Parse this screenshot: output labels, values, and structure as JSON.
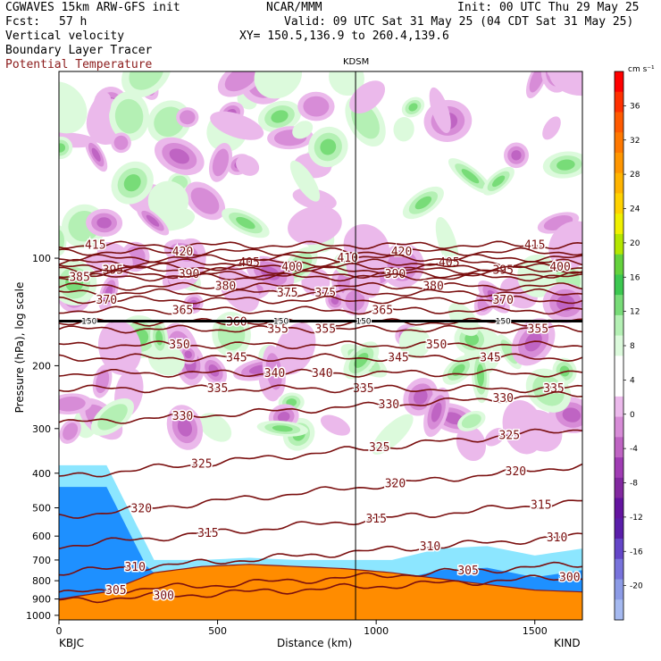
{
  "header": {
    "model_line": "CGWAVES 15km ARW-GFS init",
    "fcst_label": "Fcst:",
    "fcst_value": "57 h",
    "field1": "Vertical velocity",
    "field2": "Boundary Layer Tracer",
    "field3": "Potential Temperature",
    "org": "NCAR/MMM",
    "init": "Init: 00 UTC Thu 29 May 25",
    "valid": "Valid: 09 UTC Sat 31 May 25 (04 CDT Sat 31 May 25)",
    "xy": "XY= 150.5,136.9 to 260.4,139.6"
  },
  "colors": {
    "theta": "#7a0f0f",
    "ground": "#ff8c00",
    "terrain_line": "#8b1a1a",
    "field3_text": "#8b1a1a"
  },
  "chart_data": {
    "type": "heatmap",
    "xlabel": "Distance (km)",
    "ylabel": "Pressure (hPa), log scale",
    "xlim": [
      0,
      1650
    ],
    "ylim": [
      1000,
      30
    ],
    "x_ticks": [
      0,
      500,
      1000,
      1500
    ],
    "y_ticks": [
      100,
      200,
      300,
      400,
      500,
      600,
      700,
      800,
      900,
      1000
    ],
    "y_scale": "log",
    "start_label": "KBJC",
    "end_label": "KIND",
    "station_marker": {
      "label": "KDSM",
      "x": 935
    },
    "colorbar": {
      "units": "cm s⁻¹",
      "tick_labels": [
        36,
        32,
        28,
        24,
        20,
        16,
        12,
        8,
        4,
        0,
        -4,
        -8,
        -12,
        -16,
        -20
      ],
      "colors": [
        "#ff0000",
        "#ff3000",
        "#ff5a00",
        "#ff7800",
        "#ff9600",
        "#ffb400",
        "#ffd200",
        "#f0f000",
        "#b4e600",
        "#64d23c",
        "#3cc850",
        "#78dc78",
        "#b4f0b4",
        "#dcfadc",
        "#ffffff",
        "#ffffff",
        "#ebb9eb",
        "#d78cd7",
        "#bf64c3",
        "#a03cb4",
        "#8228a0",
        "#6414a0",
        "#5a1eaa",
        "#6446c8",
        "#7873dc",
        "#8c9be6",
        "#a5b9f0"
      ]
    },
    "theta_contours": [
      {
        "theta": 415,
        "x": [
          0,
          1650
        ],
        "p": [
          92,
          92
        ],
        "label_x": [
          115,
          1500
        ]
      },
      {
        "theta": 420,
        "x": [
          0,
          1650
        ],
        "p": [
          96,
          96
        ],
        "label_x": [
          390,
          1080
        ]
      },
      {
        "theta": 405,
        "x": [
          0,
          1650
        ],
        "p": [
          103,
          103
        ],
        "label_x": [
          600,
          1230
        ]
      },
      {
        "theta": 410,
        "x": [
          0,
          1650
        ],
        "p": [
          100,
          100
        ],
        "label_x": [
          910
        ]
      },
      {
        "theta": 395,
        "x": [
          0,
          1650
        ],
        "p": [
          108,
          108
        ],
        "label_x": [
          170,
          1400
        ]
      },
      {
        "theta": 400,
        "x": [
          0,
          1650
        ],
        "p": [
          106,
          106
        ],
        "label_x": [
          735,
          1580
        ]
      },
      {
        "theta": 390,
        "x": [
          0,
          1650
        ],
        "p": [
          111,
          111
        ],
        "label_x": [
          410,
          1060
        ]
      },
      {
        "theta": 385,
        "x": [
          0,
          1650
        ],
        "p": [
          113,
          113
        ],
        "label_x": [
          65
        ]
      },
      {
        "theta": 380,
        "x": [
          0,
          1650
        ],
        "p": [
          120,
          120
        ],
        "label_x": [
          525,
          1180
        ]
      },
      {
        "theta": 375,
        "x": [
          0,
          1650
        ],
        "p": [
          125,
          125
        ],
        "label_x": [
          720,
          840
        ]
      },
      {
        "theta": 370,
        "x": [
          0,
          1650
        ],
        "p": [
          131,
          131
        ],
        "label_x": [
          150,
          1400
        ]
      },
      {
        "theta": 365,
        "x": [
          0,
          1650
        ],
        "p": [
          140,
          140
        ],
        "label_x": [
          390,
          1020
        ]
      },
      {
        "theta": 360,
        "x": [
          0,
          1650
        ],
        "p": [
          151,
          151
        ],
        "label_x": [
          560
        ]
      },
      {
        "theta": 355,
        "x": [
          0,
          1650
        ],
        "p": [
          158,
          158
        ],
        "label_x": [
          690,
          840,
          1510
        ]
      },
      {
        "theta": 350,
        "x": [
          0,
          1650
        ],
        "p": [
          175,
          175
        ],
        "label_x": [
          380,
          1190
        ]
      },
      {
        "theta": 345,
        "x": [
          0,
          1650
        ],
        "p": [
          190,
          190
        ],
        "label_x": [
          560,
          1070,
          1360
        ]
      },
      {
        "theta": 340,
        "x": [
          0,
          1650
        ],
        "p": [
          210,
          210
        ],
        "label_x": [
          680,
          830
        ]
      },
      {
        "theta": 335,
        "x": [
          0,
          1650
        ],
        "p": [
          232,
          232
        ],
        "label_x": [
          500,
          960,
          1560
        ]
      },
      {
        "theta": 330,
        "x": [
          0,
          1650
        ],
        "p": [
          290,
          240
        ],
        "label_x": [
          390,
          1040,
          1400
        ]
      },
      {
        "theta": 325,
        "x": [
          0,
          1650
        ],
        "p": [
          410,
          300
        ],
        "label_x": [
          450,
          1010,
          1420
        ]
      },
      {
        "theta": 320,
        "x": [
          0,
          1650
        ],
        "p": [
          530,
          380
        ],
        "label_x": [
          260,
          1060,
          1440
        ]
      },
      {
        "theta": 315,
        "x": [
          0,
          1650
        ],
        "p": [
          640,
          480
        ],
        "label_x": [
          470,
          1000,
          1520
        ]
      },
      {
        "theta": 310,
        "x": [
          0,
          1650
        ],
        "p": [
          760,
          600
        ],
        "label_x": [
          240,
          1170,
          1570
        ]
      },
      {
        "theta": 305,
        "x": [
          0,
          1650
        ],
        "p": [
          870,
          720
        ],
        "label_x": [
          180,
          1290
        ]
      },
      {
        "theta": 300,
        "x": [
          0,
          1650
        ],
        "p": [
          910,
          780
        ],
        "label_x": [
          330,
          1610
        ]
      }
    ],
    "reference_line": {
      "p": 150,
      "label": "150",
      "label_x": [
        95,
        700,
        960,
        1400
      ]
    },
    "terrain_p": {
      "x": [
        0,
        150,
        300,
        450,
        600,
        750,
        900,
        1050,
        1200,
        1350,
        1500,
        1650
      ],
      "p": [
        900,
        860,
        760,
        730,
        720,
        730,
        740,
        760,
        790,
        820,
        850,
        860
      ]
    },
    "tracer_top_p": {
      "x": [
        0,
        150,
        300,
        450,
        600,
        750,
        900,
        1050,
        1200,
        1350,
        1500,
        1650
      ],
      "p": [
        380,
        380,
        700,
        700,
        690,
        700,
        700,
        700,
        650,
        640,
        680,
        650
      ]
    }
  },
  "labels": {
    "pressure_ticks": [
      "100",
      "200",
      "300",
      "400",
      "500",
      "600",
      "700",
      "800",
      "900",
      "1000"
    ],
    "distance_ticks": [
      "0",
      "500",
      "1000",
      "1500"
    ],
    "station_top": "KDSM",
    "colorbar_zero_labels": [
      "0",
      "-4",
      "-8",
      "-12",
      "-16",
      "-20"
    ]
  }
}
